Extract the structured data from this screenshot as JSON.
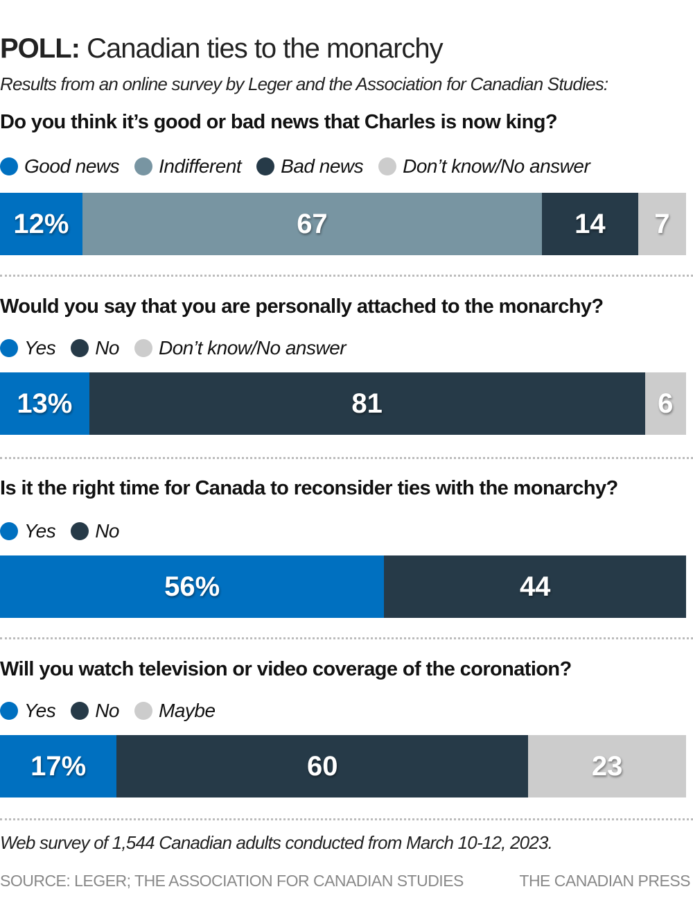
{
  "title_bold": "POLL:",
  "title_rest": " Canadian ties to the monarchy",
  "subtitle": "Results from an online survey by Leger and the Association for Canadian Studies:",
  "colors": {
    "blue": "#0070c0",
    "slate": "#7895a2",
    "dark": "#263a48",
    "grey": "#cccccc"
  },
  "chart_data": {
    "type": "bar",
    "orientation": "horizontal-stacked",
    "unit": "%",
    "charts": [
      {
        "question": "Do you think it’s good or bad news that Charles is now king?",
        "series": [
          {
            "name": "Good news",
            "value": 12,
            "label": "12%",
            "color": "#0070c0"
          },
          {
            "name": "Indifferent",
            "value": 67,
            "label": "67",
            "color": "#7895a2"
          },
          {
            "name": "Bad news",
            "value": 14,
            "label": "14",
            "color": "#263a48"
          },
          {
            "name": "Don’t know/No answer",
            "value": 7,
            "label": "7",
            "color": "#cccccc"
          }
        ]
      },
      {
        "question": "Would you say that you are personally attached to the monarchy?",
        "series": [
          {
            "name": "Yes",
            "value": 13,
            "label": "13%",
            "color": "#0070c0"
          },
          {
            "name": "No",
            "value": 81,
            "label": "81",
            "color": "#263a48"
          },
          {
            "name": "Don’t know/No answer",
            "value": 6,
            "label": "6",
            "color": "#cccccc"
          }
        ]
      },
      {
        "question": "Is it the right time for Canada to reconsider ties with the monarchy?",
        "series": [
          {
            "name": "Yes",
            "value": 56,
            "label": "56%",
            "color": "#0070c0"
          },
          {
            "name": "No",
            "value": 44,
            "label": "44",
            "color": "#263a48"
          }
        ]
      },
      {
        "question": "Will you watch television or video coverage of the coronation?",
        "series": [
          {
            "name": "Yes",
            "value": 17,
            "label": "17%",
            "color": "#0070c0"
          },
          {
            "name": "No",
            "value": 60,
            "label": "60",
            "color": "#263a48"
          },
          {
            "name": "Maybe",
            "value": 23,
            "label": "23",
            "color": "#cccccc"
          }
        ]
      }
    ]
  },
  "note": "Web survey of 1,544 Canadian adults conducted from March 10-12, 2023.",
  "source": "SOURCE: LEGER; THE ASSOCIATION FOR CANADIAN STUDIES",
  "credit": "THE CANADIAN PRESS"
}
